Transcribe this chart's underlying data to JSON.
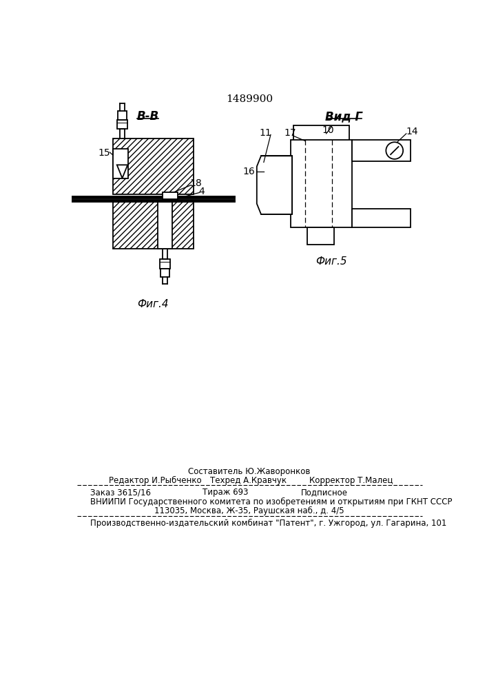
{
  "title": "1489900",
  "bg_color": "#ffffff",
  "fig4_label": "В-В",
  "fig5_label": "Вид Г",
  "fig4_caption": "Фиг.4",
  "fig5_caption": "Фиг.5",
  "footer_line1": "Составитель Ю.Жаворонков",
  "footer_line2_col1": "Редактор И.Рыбченко",
  "footer_line2_col2": "Техред А.Кравчук",
  "footer_line2_col3": "Корректор Т.Малец",
  "footer_line3_col1": "Заказ 3615/16",
  "footer_line3_col2": "Тираж 693",
  "footer_line3_col3": "Подписное",
  "footer_line4": "ВНИИПИ Государственного комитета по изобретениям и открытиям при ГКНТ СССР",
  "footer_line5": "113035, Москва, Ж-35, Раушская наб., д. 4/5",
  "footer_line6": "Производственно-издательский комбинат \"Патент\", г. Ужгород, ул. Гагарина, 101",
  "line_color": "#000000",
  "bg_color2": "#ffffff"
}
